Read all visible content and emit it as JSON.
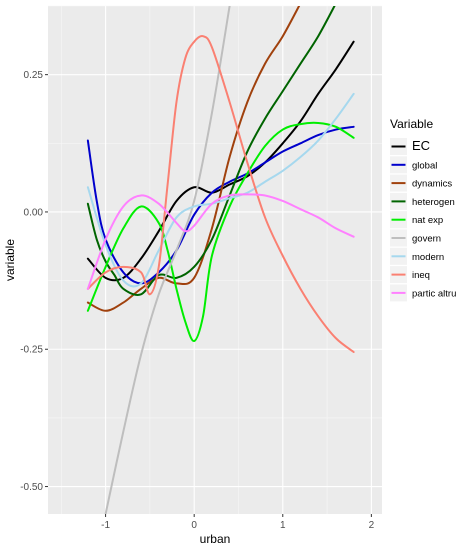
{
  "chart_data": {
    "type": "line",
    "xlabel": "urban",
    "ylabel": "variable",
    "xlim": [
      -1.65,
      2.12
    ],
    "ylim": [
      -0.55,
      0.375
    ],
    "x_ticks": [
      -1,
      0,
      1,
      2
    ],
    "x_tick_labels": [
      "-1",
      "0",
      "1",
      "2"
    ],
    "y_ticks": [
      0.25,
      0.0,
      -0.25,
      -0.5
    ],
    "y_tick_labels": [
      "0.25",
      "0.00",
      "-0.25",
      "-0.50"
    ],
    "grid": true,
    "legend": {
      "title": "Variable",
      "position": "right"
    },
    "series": [
      {
        "name": "EC",
        "color": "#000000",
        "x": [
          -1.2,
          -1.0,
          -0.8,
          -0.6,
          -0.4,
          -0.2,
          0.0,
          0.2,
          0.4,
          0.6,
          0.8,
          1.0,
          1.2,
          1.4,
          1.6,
          1.8
        ],
        "y": [
          -0.085,
          -0.12,
          -0.12,
          -0.085,
          -0.035,
          0.02,
          0.045,
          0.035,
          0.05,
          0.065,
          0.09,
          0.125,
          0.165,
          0.215,
          0.26,
          0.31
        ]
      },
      {
        "name": "global",
        "color": "#0000cc",
        "x": [
          -1.2,
          -1.1,
          -1.0,
          -0.8,
          -0.6,
          -0.4,
          -0.2,
          0.0,
          0.2,
          0.4,
          0.6,
          0.8,
          1.0,
          1.2,
          1.4,
          1.6,
          1.8
        ],
        "y": [
          0.13,
          0.02,
          -0.05,
          -0.11,
          -0.13,
          -0.11,
          -0.07,
          -0.005,
          0.035,
          0.055,
          0.07,
          0.09,
          0.11,
          0.125,
          0.14,
          0.15,
          0.155
        ]
      },
      {
        "name": "dynamics",
        "color": "#a0410d",
        "x": [
          -1.2,
          -1.0,
          -0.8,
          -0.6,
          -0.4,
          -0.2,
          0.0,
          0.2,
          0.4,
          0.6,
          0.8,
          1.0,
          1.2
        ],
        "y": [
          -0.165,
          -0.18,
          -0.165,
          -0.14,
          -0.12,
          -0.13,
          -0.12,
          -0.03,
          0.1,
          0.2,
          0.27,
          0.32,
          0.38
        ]
      },
      {
        "name": "heterogen",
        "color": "#006400",
        "x": [
          -1.2,
          -1.1,
          -1.0,
          -0.9,
          -0.8,
          -0.6,
          -0.4,
          -0.2,
          0.0,
          0.2,
          0.4,
          0.6,
          0.8,
          1.0,
          1.2,
          1.4,
          1.6
        ],
        "y": [
          0.015,
          -0.05,
          -0.09,
          -0.115,
          -0.14,
          -0.15,
          -0.115,
          -0.12,
          -0.1,
          -0.05,
          0.03,
          0.11,
          0.17,
          0.22,
          0.27,
          0.32,
          0.38
        ]
      },
      {
        "name": "nat exp",
        "color": "#00ee00",
        "x": [
          -1.2,
          -1.0,
          -0.8,
          -0.6,
          -0.4,
          -0.3,
          -0.2,
          -0.1,
          0.0,
          0.1,
          0.2,
          0.4,
          0.6,
          0.8,
          1.0,
          1.2,
          1.4,
          1.6,
          1.8
        ],
        "y": [
          -0.18,
          -0.1,
          -0.03,
          0.01,
          -0.02,
          -0.07,
          -0.14,
          -0.2,
          -0.235,
          -0.19,
          -0.08,
          0.01,
          0.07,
          0.12,
          0.15,
          0.16,
          0.162,
          0.155,
          0.135
        ]
      },
      {
        "name": "govern",
        "color": "#bebebe",
        "x": [
          -1.0,
          -0.8,
          -0.6,
          -0.4,
          -0.2,
          0.0,
          0.2,
          0.4
        ],
        "y": [
          -0.55,
          -0.4,
          -0.26,
          -0.15,
          -0.07,
          0.02,
          0.18,
          0.375
        ]
      },
      {
        "name": "modern",
        "color": "#a6d8ee",
        "x": [
          -1.2,
          -1.0,
          -0.8,
          -0.6,
          -0.4,
          -0.2,
          0.0,
          0.2,
          0.4,
          0.6,
          0.8,
          1.0,
          1.2,
          1.4,
          1.6,
          1.8
        ],
        "y": [
          0.045,
          -0.06,
          -0.125,
          -0.13,
          -0.07,
          -0.01,
          0.01,
          0.015,
          0.025,
          0.035,
          0.055,
          0.075,
          0.1,
          0.13,
          0.17,
          0.215
        ]
      },
      {
        "name": "ineq",
        "color": "#fa8072",
        "x": [
          -1.2,
          -1.0,
          -0.8,
          -0.6,
          -0.5,
          -0.4,
          -0.3,
          -0.2,
          -0.1,
          0.0,
          0.1,
          0.2,
          0.4,
          0.6,
          0.8,
          1.0,
          1.2,
          1.4,
          1.6,
          1.8
        ],
        "y": [
          -0.14,
          -0.11,
          -0.1,
          -0.11,
          -0.15,
          -0.1,
          0.05,
          0.2,
          0.28,
          0.31,
          0.32,
          0.3,
          0.2,
          0.09,
          -0.01,
          -0.08,
          -0.14,
          -0.19,
          -0.23,
          -0.255
        ]
      },
      {
        "name": "partic altru",
        "color": "#ff80ff",
        "x": [
          -1.2,
          -1.0,
          -0.8,
          -0.6,
          -0.4,
          -0.2,
          -0.1,
          0.0,
          0.2,
          0.4,
          0.6,
          0.8,
          1.0,
          1.2,
          1.4,
          1.6,
          1.8
        ],
        "y": [
          -0.14,
          -0.05,
          0.01,
          0.03,
          0.015,
          -0.02,
          -0.035,
          -0.025,
          0.015,
          0.03,
          0.032,
          0.03,
          0.02,
          0.005,
          -0.01,
          -0.03,
          -0.045
        ]
      }
    ]
  }
}
